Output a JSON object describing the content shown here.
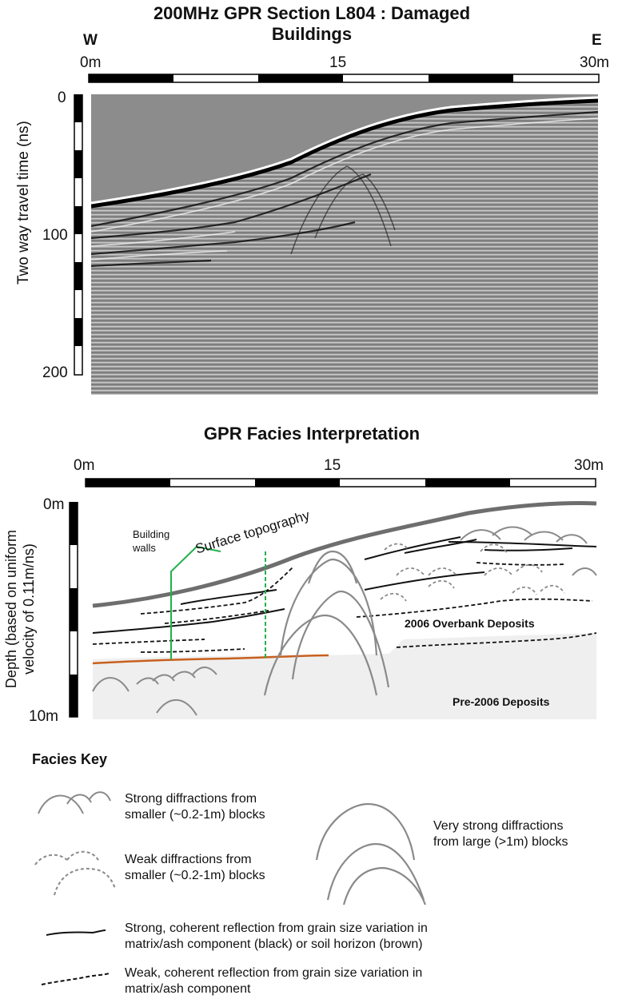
{
  "top_section": {
    "title_line1": "200MHz GPR Section L804 : Damaged",
    "title_line2": "Buildings",
    "west": "W",
    "east": "E",
    "x_ticks": [
      "0m",
      "15",
      "30m"
    ],
    "y_axis_label": "Two way travel time (ns)",
    "y_ticks": [
      "0",
      "100",
      "200"
    ]
  },
  "bottom_section": {
    "title": "GPR Facies Interpretation",
    "x_ticks": [
      "0m",
      "15",
      "30m"
    ],
    "y_axis_label_line1": "Depth (based on uniform",
    "y_axis_label_line2": "velocity of 0.11m/ns)",
    "y_ticks": [
      "0m",
      "10m"
    ],
    "building_walls_line1": "Building",
    "building_walls_line2": "walls",
    "surface_topography": "Surface topography",
    "overbank": "2006 Overbank Deposits",
    "pre2006": "Pre-2006 Deposits"
  },
  "key": {
    "title": "Facies Key",
    "strong_small_line1": "Strong diffractions from",
    "strong_small_line2": "smaller (~0.2-1m) blocks",
    "weak_small_line1": "Weak diffractions from",
    "weak_small_line2": "smaller (~0.2-1m) blocks",
    "very_strong_line1": "Very strong diffractions",
    "very_strong_line2": "from large (>1m) blocks",
    "strong_reflection_line1": "Strong, coherent reflection from grain size variation in",
    "strong_reflection_line2": "matrix/ash component (black) or soil horizon (brown)",
    "weak_reflection_line1": "Weak, coherent reflection from grain size variation in",
    "weak_reflection_line2": "matrix/ash component"
  },
  "colors": {
    "wall_green": "#22b04b",
    "soil_brown": "#c8601e",
    "diffraction_gray": "#8a8a8a",
    "radar_gray": "#8c8c8c",
    "pre2006_fill": "#efefef"
  }
}
